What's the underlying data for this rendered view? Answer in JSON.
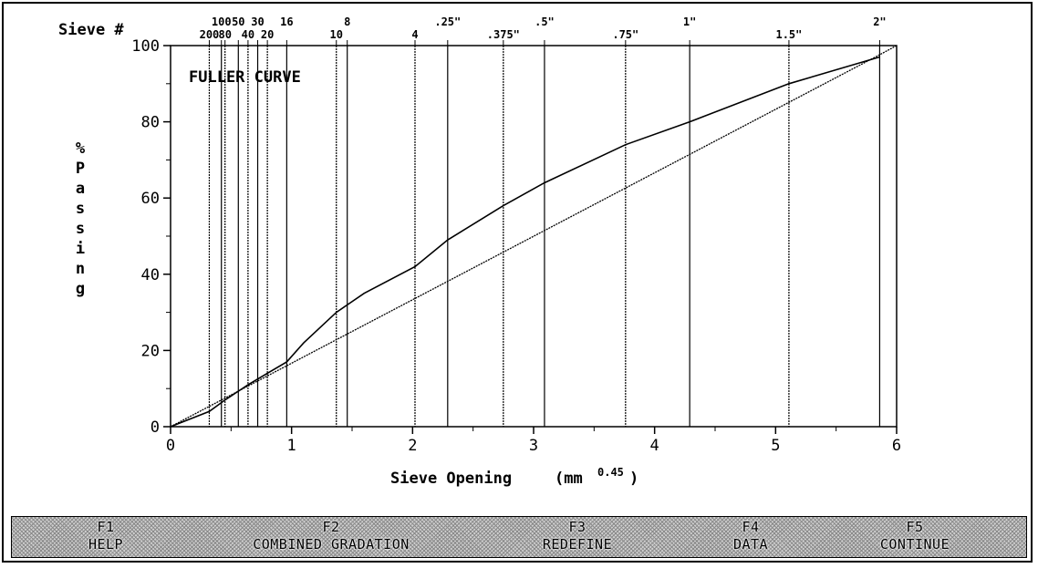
{
  "chart_data": {
    "type": "line",
    "title": "",
    "annotation": "FULLER CURVE",
    "ylabel": "% Passing",
    "xlabel": "Sieve Opening",
    "xlabel_unit": "(mm",
    "xlabel_exp": "0.45",
    "xlabel_close": ")",
    "top_axis_label": "Sieve #",
    "xlim": [
      0,
      6
    ],
    "ylim": [
      0,
      100
    ],
    "x_ticks": [
      "0",
      "1",
      "2",
      "3",
      "4",
      "5",
      "6"
    ],
    "y_ticks": [
      "0",
      "20",
      "40",
      "60",
      "80",
      "100"
    ],
    "grid": "vertical lines at sieve sizes",
    "sieves": [
      {
        "label": "200",
        "x": 0.32,
        "row": "lower"
      },
      {
        "label": "100",
        "x": 0.42,
        "row": "upper"
      },
      {
        "label": "80",
        "x": 0.45,
        "row": "lower"
      },
      {
        "label": "50",
        "x": 0.56,
        "row": "upper"
      },
      {
        "label": "40",
        "x": 0.64,
        "row": "lower"
      },
      {
        "label": "30",
        "x": 0.72,
        "row": "upper"
      },
      {
        "label": "20",
        "x": 0.8,
        "row": "lower"
      },
      {
        "label": "16",
        "x": 0.96,
        "row": "upper"
      },
      {
        "label": "10",
        "x": 1.37,
        "row": "lower"
      },
      {
        "label": "8",
        "x": 1.46,
        "row": "upper"
      },
      {
        "label": "4",
        "x": 2.02,
        "row": "lower"
      },
      {
        "label": ".25\"",
        "x": 2.29,
        "row": "upper"
      },
      {
        "label": ".375\"",
        "x": 2.75,
        "row": "lower"
      },
      {
        "label": ".5\"",
        "x": 3.09,
        "row": "upper"
      },
      {
        "label": ".75\"",
        "x": 3.76,
        "row": "lower"
      },
      {
        "label": "1\"",
        "x": 4.29,
        "row": "upper"
      },
      {
        "label": "1.5\"",
        "x": 5.11,
        "row": "lower"
      },
      {
        "label": "2\"",
        "x": 5.86,
        "row": "upper"
      }
    ],
    "series": [
      {
        "x": [
          0.0,
          0.32,
          0.45,
          0.64,
          0.8,
          0.96,
          1.1,
          1.37,
          1.6,
          2.02,
          2.29,
          2.75,
          3.09,
          3.76,
          4.29,
          5.11,
          5.86
        ],
        "y": [
          0,
          4,
          7,
          11,
          14,
          17,
          22,
          30,
          35,
          42,
          49,
          58,
          64,
          74,
          80,
          90,
          97
        ]
      },
      {
        "x": [
          0.0,
          5.86,
          6.0
        ],
        "y": [
          0,
          97.6,
          100
        ]
      }
    ]
  },
  "fkeys": [
    {
      "key": "F1",
      "label": "HELP"
    },
    {
      "key": "F2",
      "label": "COMBINED GRADATION"
    },
    {
      "key": "F3",
      "label": "REDEFINE"
    },
    {
      "key": "F4",
      "label": "DATA"
    },
    {
      "key": "F5",
      "label": "CONTINUE"
    }
  ]
}
